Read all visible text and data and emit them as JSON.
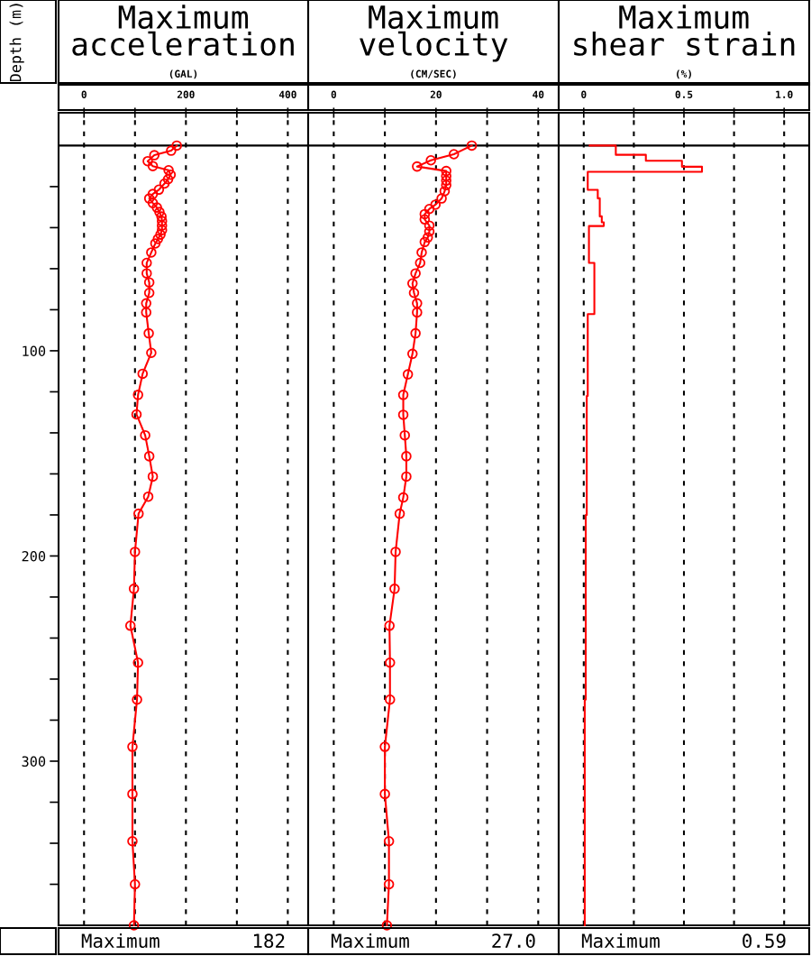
{
  "chart_data": [
    {
      "type": "line",
      "title": "Maximum\nacceleration",
      "xlabel": "(GAL)",
      "ylabel": "Depth (m)",
      "xlim": [
        -50,
        440
      ],
      "xticks": [
        0,
        {
          "value": 100,
          "label": null
        },
        200,
        {
          "value": 300,
          "label": null
        },
        400
      ],
      "ylim": [
        380,
        -16
      ],
      "ref_lines": [
        {
          "axis": "y",
          "value": 0,
          "color": "#000000"
        }
      ],
      "yticks": [
        {
          "value": 20,
          "label": null
        },
        {
          "value": 40,
          "label": null
        },
        {
          "value": 60,
          "label": null
        },
        {
          "value": 80,
          "label": null
        },
        100,
        {
          "value": 120,
          "label": null
        },
        {
          "value": 140,
          "label": null
        },
        {
          "value": 160,
          "label": null
        },
        {
          "value": 180,
          "label": null
        },
        200,
        {
          "value": 220,
          "label": null
        },
        {
          "value": 240,
          "label": null
        },
        {
          "value": 260,
          "label": null
        },
        {
          "value": 280,
          "label": null
        },
        300,
        {
          "value": 320,
          "label": null
        },
        {
          "value": 340,
          "label": null
        },
        {
          "value": 360,
          "label": null
        }
      ],
      "grid": "x",
      "marker": "circle",
      "annotations": [
        "Maximum",
        "182"
      ],
      "series": [
        {
          "color": "#ff0000",
          "x": [
            182,
            171,
            138,
            125,
            135,
            166,
            170,
            165,
            158,
            147,
            135,
            128,
            135,
            143,
            148,
            152,
            153,
            153,
            153,
            150,
            145,
            140,
            132,
            123,
            123,
            128,
            128,
            122,
            122,
            127,
            132,
            115,
            106,
            103,
            120,
            128,
            135,
            126,
            107,
            100,
            98,
            91,
            106,
            104,
            95,
            95,
            95,
            100,
            98
          ],
          "values": [
            0,
            2.5,
            4.7,
            7.6,
            10,
            12,
            14.2,
            16.4,
            18.5,
            21.5,
            23.6,
            25.8,
            28,
            30.2,
            32.4,
            34.6,
            36.8,
            39,
            41.2,
            43.4,
            45.5,
            47.7,
            52.1,
            57.2,
            62.3,
            66.7,
            71.8,
            76.9,
            81.3,
            91.5,
            101,
            111.2,
            121.5,
            131,
            141.2,
            151.4,
            161.3,
            171.1,
            179.4,
            198,
            216,
            234,
            252,
            270,
            293,
            316,
            339,
            360,
            380
          ]
        }
      ]
    },
    {
      "type": "line",
      "title": "Maximum\nvelocity",
      "xlabel": "(CM/SEC)",
      "xlim": [
        -5,
        44
      ],
      "xticks": [
        0,
        {
          "value": 10,
          "label": null
        },
        20,
        {
          "value": 30,
          "label": null
        },
        40
      ],
      "ylim": [
        380,
        -16
      ],
      "ref_lines": [
        {
          "axis": "y",
          "value": 0,
          "color": "#000000"
        }
      ],
      "tick_labels": "x",
      "grid": "x",
      "marker": "circle",
      "annotations": [
        "Maximum",
        "27.0"
      ],
      "series": [
        {
          "color": "#ff0000",
          "x": [
            27.0,
            23.5,
            19,
            16.3,
            22,
            22,
            22,
            22,
            21.7,
            21.1,
            19.9,
            18.7,
            17.8,
            17.8,
            18.7,
            18.7,
            18.4,
            17.8,
            17.2,
            16.9,
            16,
            15.4,
            15.7,
            16.3,
            16.3,
            16,
            15.4,
            14.5,
            13.6,
            13.6,
            13.9,
            14.2,
            14.2,
            13.6,
            12.9,
            12.1,
            11.9,
            10.9,
            11,
            11,
            10,
            10,
            10.8,
            10.8,
            10.4
          ],
          "values": [
            0,
            4.2,
            7.2,
            10.2,
            12.4,
            14.9,
            17.1,
            19.3,
            22.2,
            25.8,
            28.8,
            30.9,
            33.4,
            36,
            39,
            41.9,
            44.8,
            47,
            52.1,
            57.2,
            62.3,
            67.2,
            71.8,
            76.9,
            81.3,
            91.5,
            101.5,
            111.5,
            121.5,
            131.2,
            141.2,
            151.4,
            161.3,
            171.5,
            179.4,
            198,
            216,
            234,
            252,
            270,
            293,
            316,
            339,
            360,
            380
          ]
        }
      ]
    },
    {
      "type": "line",
      "title": "Maximum\nshear strain",
      "xlabel": "(%)",
      "xlim": [
        -0.125,
        1.125
      ],
      "xticks": [
        {
          "value": 0,
          "label": "0"
        },
        {
          "value": 0.25,
          "label": null
        },
        {
          "value": 0.5,
          "label": "0.5"
        },
        {
          "value": 0.75,
          "label": null
        },
        {
          "value": 1.0,
          "label": "1.0"
        }
      ],
      "ylim": [
        380,
        -16
      ],
      "ref_lines": [
        {
          "axis": "y",
          "value": 0,
          "color": "#000000"
        }
      ],
      "tick_labels": "x",
      "grid": "x",
      "annotations": [
        "Maximum",
        "0.59"
      ],
      "series": [
        {
          "color": "#ff0000",
          "x": [
            0.03,
            0.16,
            0.16,
            0.31,
            0.31,
            0.49,
            0.49,
            0.59,
            0.59,
            0.02,
            0.02,
            0.07,
            0.07,
            0.08,
            0.08,
            0.09,
            0.09,
            0.1,
            0.1,
            0.026,
            0.026,
            0.053,
            0.053,
            0.02,
            0.02,
            0.015,
            0.015,
            0.01,
            0.01,
            0.005,
            0.005
          ],
          "values": [
            0,
            0,
            4.5,
            4.5,
            7.4,
            7.4,
            10.3,
            10.3,
            12.8,
            12.8,
            21.6,
            21.6,
            25.7,
            25.7,
            34.5,
            34.5,
            37.4,
            37.4,
            39.2,
            39.2,
            57.2,
            57.2,
            82.1,
            82.1,
            122,
            122,
            180,
            180,
            270,
            270,
            380
          ]
        }
      ]
    }
  ]
}
